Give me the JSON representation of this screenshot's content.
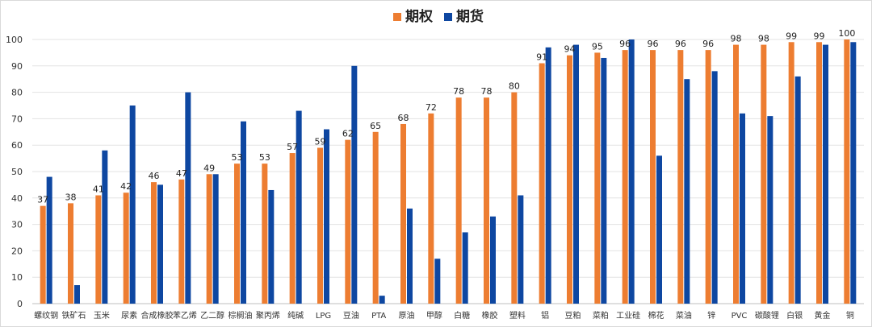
{
  "chart_data": {
    "type": "bar",
    "title": "",
    "xlabel": "",
    "ylabel": "",
    "ylim": [
      0,
      100
    ],
    "yticks": [
      0,
      10,
      20,
      30,
      40,
      50,
      60,
      70,
      80,
      90,
      100
    ],
    "grid": true,
    "legend_position": "top-center",
    "categories": [
      "螺纹钢",
      "铁矿石",
      "玉米",
      "尿素",
      "合成橡胶",
      "苯乙烯",
      "乙二醇",
      "棕榈油",
      "聚丙烯",
      "纯碱",
      "LPG",
      "豆油",
      "PTA",
      "原油",
      "甲醇",
      "白糖",
      "橡胶",
      "塑料",
      "铝",
      "豆粕",
      "菜粕",
      "工业硅",
      "棉花",
      "菜油",
      "锌",
      "PVC",
      "碳酸锂",
      "白银",
      "黄金",
      "铜"
    ],
    "series": [
      {
        "name": "期权",
        "color": "#ED7D31",
        "values": [
          37,
          38,
          41,
          42,
          46,
          47,
          49,
          53,
          53,
          57,
          59,
          62,
          65,
          68,
          72,
          78,
          78,
          80,
          91,
          94,
          95,
          96,
          96,
          96,
          96,
          98,
          98,
          99,
          99,
          100
        ],
        "data_labels": [
          "37",
          "38",
          "41",
          "42",
          "46",
          "47",
          "49",
          "53",
          "53",
          "57",
          "59",
          "62",
          "65",
          "68",
          "72",
          "78",
          "78",
          "80",
          "91",
          "94",
          "95",
          "96",
          "96",
          "96",
          "96",
          "98",
          "98",
          "99",
          "99",
          "100"
        ]
      },
      {
        "name": "期货",
        "color": "#0E47A1",
        "values": [
          48,
          7,
          58,
          75,
          45,
          80,
          49,
          69,
          43,
          73,
          66,
          90,
          3,
          36,
          17,
          27,
          33,
          41,
          97,
          98,
          93,
          100,
          56,
          85,
          88,
          72,
          71,
          86,
          98,
          99
        ]
      }
    ]
  }
}
